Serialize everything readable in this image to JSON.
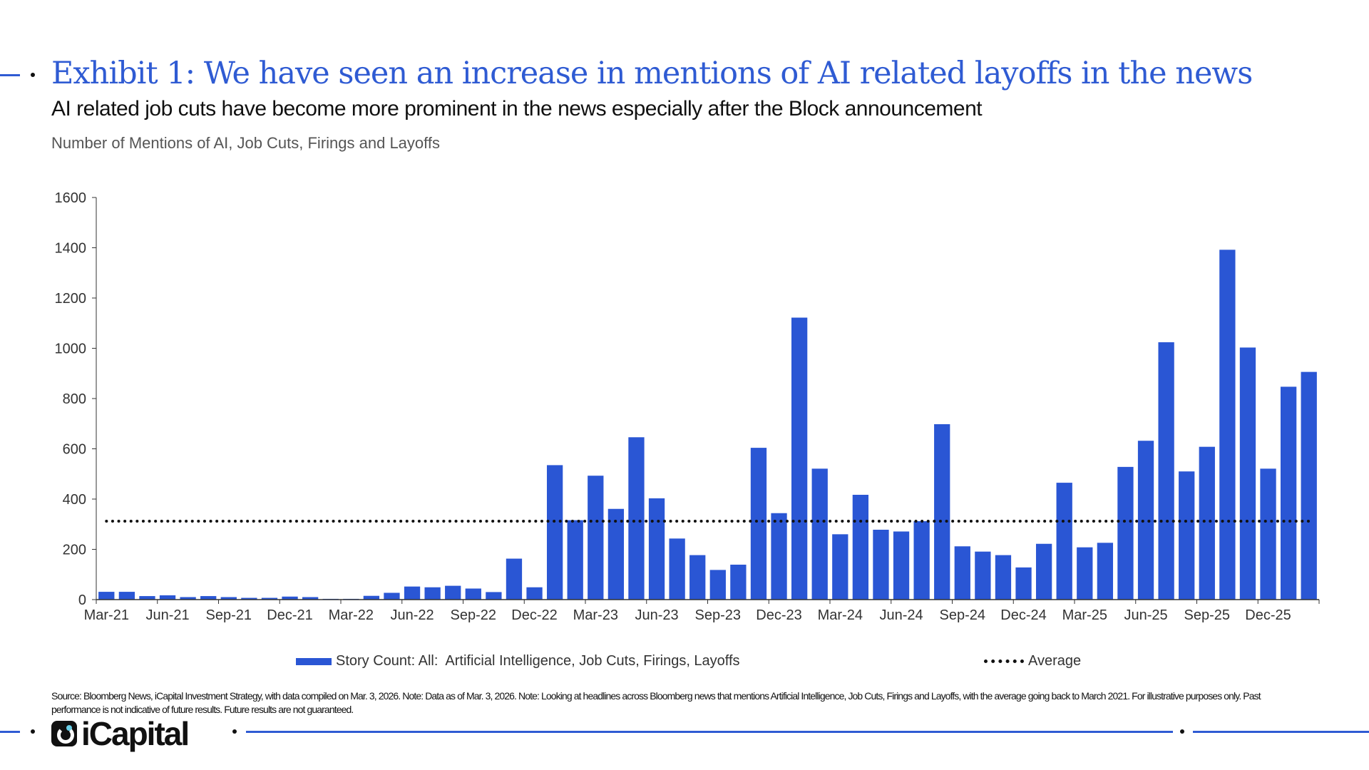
{
  "header": {
    "title": "Exhibit 1: We have seen an increase in mentions of AI related layoffs in the news",
    "subtitle": "AI related job cuts have become more prominent in the news especially after the Block announcement",
    "chart_label": "Number of Mentions of AI, Job Cuts, Firings and Layoffs"
  },
  "colors": {
    "bar": "#2a56d4",
    "accent": "#2f5bd3",
    "average": "#111111"
  },
  "chart_data": {
    "type": "bar",
    "title": "Number of Mentions of AI, Job Cuts, Firings and Layoffs",
    "xlabel": "",
    "ylabel": "",
    "ylim": [
      0,
      1600
    ],
    "yticks": [
      0,
      200,
      400,
      600,
      800,
      1000,
      1200,
      1400,
      1600
    ],
    "xtick_labels": [
      "Mar-21",
      "Jun-21",
      "Sep-21",
      "Dec-21",
      "Mar-22",
      "Jun-22",
      "Sep-22",
      "Dec-22",
      "Mar-23",
      "Jun-23",
      "Sep-23",
      "Dec-23",
      "Mar-24",
      "Jun-24",
      "Sep-24",
      "Dec-24",
      "Mar-25",
      "Jun-25",
      "Sep-25",
      "Dec-25"
    ],
    "categories": [
      "Mar-21",
      "Apr-21",
      "May-21",
      "Jun-21",
      "Jul-21",
      "Aug-21",
      "Sep-21",
      "Oct-21",
      "Nov-21",
      "Dec-21",
      "Jan-22",
      "Feb-22",
      "Mar-22",
      "Apr-22",
      "May-22",
      "Jun-22",
      "Jul-22",
      "Aug-22",
      "Sep-22",
      "Oct-22",
      "Nov-22",
      "Dec-22",
      "Jan-23",
      "Feb-23",
      "Mar-23",
      "Apr-23",
      "May-23",
      "Jun-23",
      "Jul-23",
      "Aug-23",
      "Sep-23",
      "Oct-23",
      "Nov-23",
      "Dec-23",
      "Jan-24",
      "Feb-24",
      "Mar-24",
      "Apr-24",
      "May-24",
      "Jun-24",
      "Jul-24",
      "Aug-24",
      "Sep-24",
      "Oct-24",
      "Nov-24",
      "Dec-24",
      "Jan-25",
      "Feb-25",
      "Mar-25",
      "Apr-25",
      "May-25",
      "Jun-25",
      "Jul-25",
      "Aug-25",
      "Sep-25",
      "Oct-25",
      "Nov-25",
      "Dec-25",
      "Jan-26",
      "Feb-26"
    ],
    "series": [
      {
        "name": "Story Count: All:  Artificial Intelligence, Job Cuts, Firings, Layoffs",
        "type": "bar",
        "values": [
          31,
          31,
          14,
          17,
          10,
          14,
          10,
          7,
          7,
          12,
          10,
          3,
          3,
          15,
          27,
          52,
          49,
          55,
          44,
          30,
          163,
          49,
          535,
          316,
          493,
          361,
          646,
          403,
          243,
          177,
          118,
          139,
          604,
          344,
          1122,
          521,
          260,
          417,
          278,
          271,
          312,
          698,
          212,
          191,
          177,
          128,
          222,
          465,
          208,
          226,
          528,
          632,
          1024,
          510,
          608,
          1392,
          1003,
          521,
          847,
          906
        ]
      },
      {
        "name": "Average",
        "type": "line",
        "style": "dotted",
        "value": 312
      }
    ],
    "legend_position": "bottom",
    "grid": false
  },
  "footnote": "Source: Bloomberg News, iCapital Investment Strategy, with data compiled on Mar. 3, 2026. Note: Data as of Mar. 3, 2026. Note:  Looking at headlines across Bloomberg news that mentions Artificial Intelligence, Job Cuts, Firings and Layoffs, with the average going back to March 2021. For illustrative purposes only. Past performance is not indicative of future results. Future results are not guaranteed.",
  "logo": {
    "text": "iCapital"
  }
}
